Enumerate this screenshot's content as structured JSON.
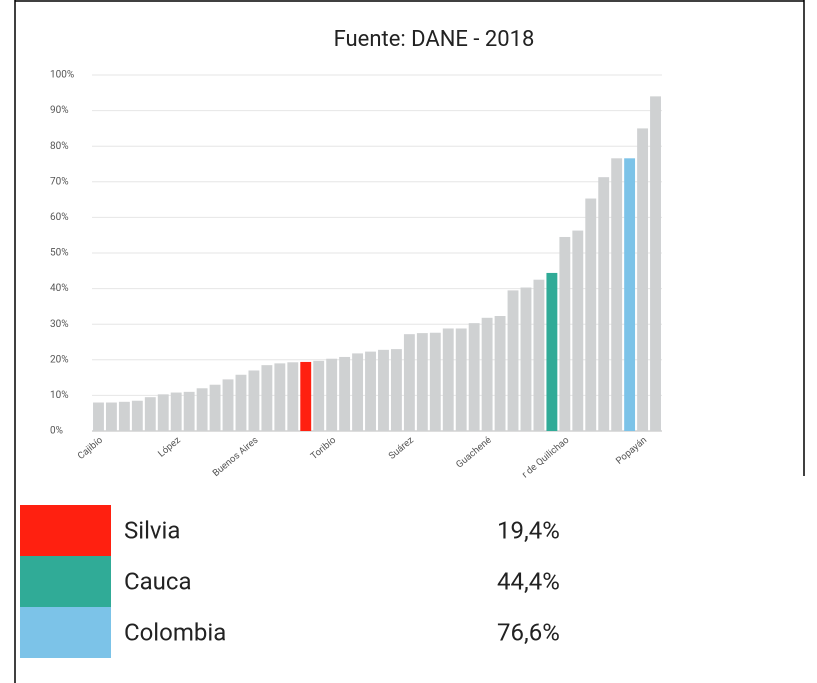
{
  "chart_data": {
    "type": "bar",
    "title": "Fuente: DANE - 2018",
    "categories": [
      "Cajibío",
      null,
      null,
      null,
      null,
      null,
      "López",
      null,
      null,
      null,
      null,
      null,
      "Buenos Aires",
      null,
      null,
      null,
      null,
      null,
      "Toribío",
      null,
      null,
      null,
      null,
      null,
      "Suárez",
      null,
      null,
      null,
      null,
      null,
      "Guachené",
      null,
      null,
      null,
      null,
      null,
      "r de Quilichao",
      null,
      null,
      null,
      null,
      null,
      "Popayán",
      null
    ],
    "values": [
      8,
      8,
      8.2,
      8.5,
      9.5,
      10.3,
      10.8,
      11,
      12,
      13,
      14.5,
      15.8,
      17,
      18.5,
      19,
      19.3,
      19.4,
      19.7,
      20.3,
      20.8,
      21.8,
      22.3,
      22.8,
      23,
      27.2,
      27.5,
      27.6,
      28.8,
      28.8,
      30.3,
      31.8,
      32.3,
      39.5,
      40.3,
      42.5,
      44.4,
      54.5,
      56.3,
      65.3,
      71.3,
      76.6,
      76.6,
      85,
      94
    ],
    "colors": [
      "#cfd1d2",
      "#cfd1d2",
      "#cfd1d2",
      "#cfd1d2",
      "#cfd1d2",
      "#cfd1d2",
      "#cfd1d2",
      "#cfd1d2",
      "#cfd1d2",
      "#cfd1d2",
      "#cfd1d2",
      "#cfd1d2",
      "#cfd1d2",
      "#cfd1d2",
      "#cfd1d2",
      "#cfd1d2",
      "#ff2010",
      "#cfd1d2",
      "#cfd1d2",
      "#cfd1d2",
      "#cfd1d2",
      "#cfd1d2",
      "#cfd1d2",
      "#cfd1d2",
      "#cfd1d2",
      "#cfd1d2",
      "#cfd1d2",
      "#cfd1d2",
      "#cfd1d2",
      "#cfd1d2",
      "#cfd1d2",
      "#cfd1d2",
      "#cfd1d2",
      "#cfd1d2",
      "#cfd1d2",
      "#30ab97",
      "#cfd1d2",
      "#cfd1d2",
      "#cfd1d2",
      "#cfd1d2",
      "#cfd1d2",
      "#7cc3e8",
      "#cfd1d2",
      "#cfd1d2"
    ],
    "ylim": [
      0,
      100
    ],
    "yticks": [
      {
        "value": 0,
        "label": "0%"
      },
      {
        "value": 10,
        "label": "10%"
      },
      {
        "value": 20,
        "label": "20%"
      },
      {
        "value": 30,
        "label": "30%"
      },
      {
        "value": 40,
        "label": "40%"
      },
      {
        "value": 50,
        "label": "50%"
      },
      {
        "value": 60,
        "label": "60%"
      },
      {
        "value": 70,
        "label": "70%"
      },
      {
        "value": 80,
        "label": "80%"
      },
      {
        "value": 90,
        "label": "90%"
      },
      {
        "value": 100,
        "label": "100%"
      }
    ],
    "grid": true,
    "legend": [
      {
        "name": "Silvia",
        "color": "#ff2010",
        "value": 19.4,
        "value_label": "19,4%"
      },
      {
        "name": "Cauca",
        "color": "#30ab97",
        "value": 44.4,
        "value_label": "44,4%"
      },
      {
        "name": "Colombia",
        "color": "#7cc3e8",
        "value": 76.6,
        "value_label": "76,6%"
      }
    ]
  }
}
